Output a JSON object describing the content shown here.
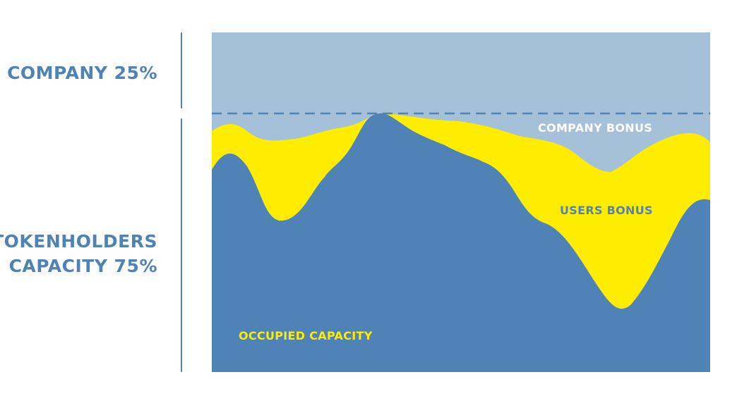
{
  "labels": {
    "company": "COMPANY 25%",
    "tokenholders_line1": "TOKENHOLDERS",
    "tokenholders_line2": "CAPACITY 75%"
  },
  "regions": {
    "company_bonus": "COMPANY BONUS",
    "users_bonus": "USERS BONUS",
    "occupied_capacity": "OCCUPIED CAPACITY"
  },
  "colors": {
    "company_band": "#a5c0d9",
    "occupied": "#4f83b6",
    "users_bonus": "#ffed00",
    "dashed_line": "#4f83b6",
    "left_labels": "#4f83b6",
    "company_bonus_text": "#ffffff",
    "users_bonus_text": "#4f83b6",
    "occupied_text": "#ffed00",
    "divider": "#4f83b6"
  }
}
